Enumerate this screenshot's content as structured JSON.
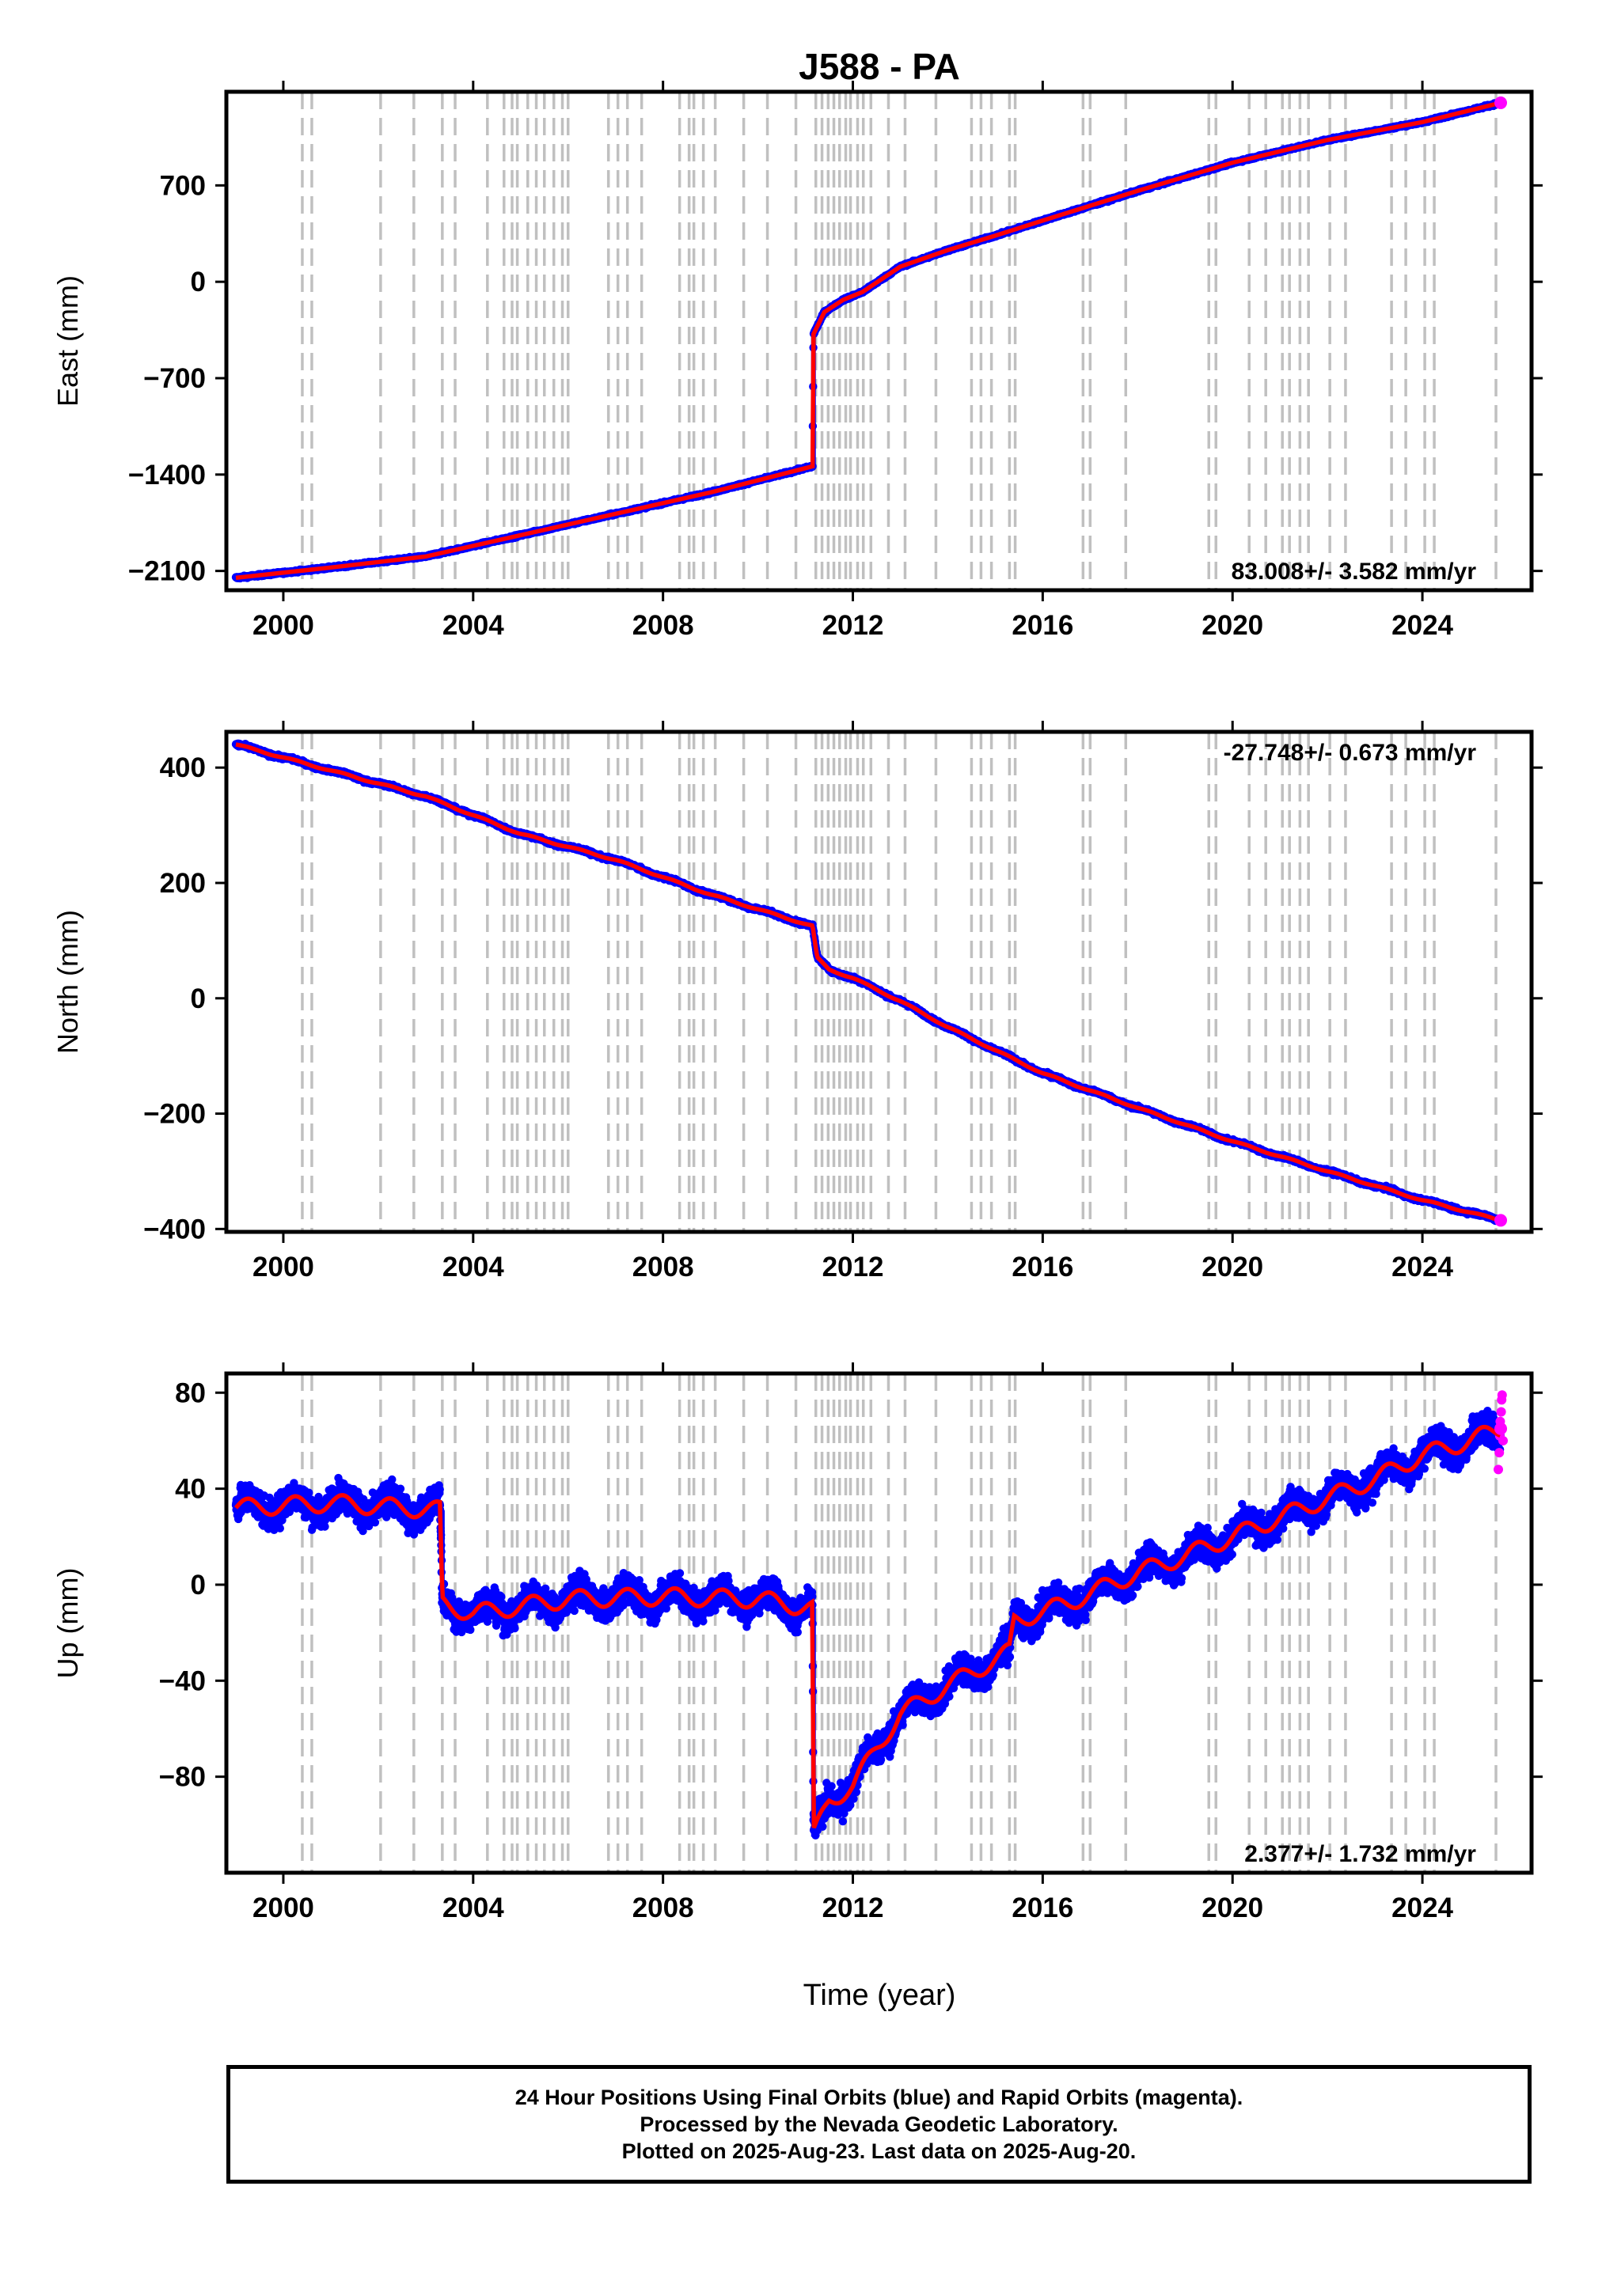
{
  "title": "J588 - PA",
  "x_axis": {
    "label": "Time (year)",
    "range": [
      1998.8,
      2026.3
    ],
    "ticks": [
      2000,
      2004,
      2008,
      2012,
      2016,
      2020,
      2024
    ],
    "tick_labels": [
      "2000",
      "2004",
      "2008",
      "2012",
      "2016",
      "2020",
      "2024"
    ]
  },
  "event_lines": [
    2000.4,
    2000.6,
    2002.05,
    2002.75,
    2003.35,
    2003.62,
    2004.3,
    2004.65,
    2004.82,
    2004.93,
    2005.15,
    2005.33,
    2005.5,
    2005.7,
    2005.88,
    2006.0,
    2006.85,
    2007.05,
    2007.25,
    2007.55,
    2008.35,
    2008.55,
    2008.65,
    2008.85,
    2009.1,
    2009.7,
    2010.2,
    2010.8,
    2011.22,
    2011.35,
    2011.48,
    2011.6,
    2011.72,
    2011.85,
    2011.95,
    2012.1,
    2012.22,
    2012.38,
    2012.75,
    2013.1,
    2013.75,
    2014.5,
    2014.7,
    2014.92,
    2015.3,
    2015.42,
    2016.85,
    2017.0,
    2017.75,
    2019.5,
    2019.65,
    2020.35,
    2020.7,
    2021.05,
    2021.2,
    2021.42,
    2021.6,
    2022.05,
    2022.38,
    2023.35,
    2023.65,
    2024.05,
    2024.25,
    2025.55
  ],
  "footer": {
    "line1": "24 Hour Positions Using Final Orbits (blue) and Rapid Orbits (magenta).",
    "line2": "Processed by the Nevada Geodetic Laboratory.",
    "line3": "Plotted on 2025-Aug-23. Last data on 2025-Aug-20."
  },
  "colors": {
    "final_orbits": "#0000ff",
    "rapid_orbits": "#ff00ff",
    "model": "#ff0000",
    "event_lines": "#c0c0c0"
  },
  "chart_data": [
    {
      "type": "scatter",
      "ylabel": "East (mm)",
      "ylim": [
        -2240,
        1380
      ],
      "yticks": [
        -2100,
        -1400,
        -700,
        0,
        700
      ],
      "ytick_labels": [
        "−2100",
        "−1400",
        "−700",
        "0",
        "700"
      ],
      "rate_label": "83.008+/- 3.582 mm/yr",
      "rate_position": "bottom-right",
      "noise_mm": 8,
      "seasonal_mm": 0,
      "model_series": [
        [
          1999.0,
          -2150
        ],
        [
          2001.0,
          -2075
        ],
        [
          2003.0,
          -1995
        ],
        [
          2005.0,
          -1840
        ],
        [
          2007.0,
          -1685
        ],
        [
          2009.0,
          -1530
        ],
        [
          2011.15,
          -1340
        ],
        [
          2011.17,
          -380
        ],
        [
          2011.4,
          -220
        ],
        [
          2011.8,
          -130
        ],
        [
          2012.2,
          -75
        ],
        [
          2013.0,
          110
        ],
        [
          2014.0,
          230
        ],
        [
          2015.0,
          335
        ],
        [
          2016.0,
          445
        ],
        [
          2018.0,
          660
        ],
        [
          2020.0,
          865
        ],
        [
          2022.0,
          1030
        ],
        [
          2024.0,
          1160
        ],
        [
          2025.65,
          1300
        ]
      ]
    },
    {
      "type": "scatter",
      "ylabel": "North (mm)",
      "ylim": [
        -405,
        462
      ],
      "yticks": [
        -400,
        -200,
        0,
        200,
        400
      ],
      "ytick_labels": [
        "−400",
        "−200",
        "0",
        "200",
        "400"
      ],
      "rate_label": "-27.748+/- 0.673 mm/yr",
      "rate_position": "top-right",
      "noise_mm": 3,
      "seasonal_mm": 1.5,
      "model_series": [
        [
          1999.0,
          440
        ],
        [
          2001.0,
          395
        ],
        [
          2003.0,
          350
        ],
        [
          2005.0,
          285
        ],
        [
          2007.0,
          240
        ],
        [
          2009.0,
          180
        ],
        [
          2011.15,
          125
        ],
        [
          2011.25,
          70
        ],
        [
          2011.5,
          50
        ],
        [
          2012.0,
          35
        ],
        [
          2013.0,
          -5
        ],
        [
          2014.0,
          -50
        ],
        [
          2015.0,
          -90
        ],
        [
          2016.0,
          -130
        ],
        [
          2018.0,
          -190
        ],
        [
          2020.0,
          -248
        ],
        [
          2022.0,
          -300
        ],
        [
          2024.0,
          -350
        ],
        [
          2025.65,
          -385
        ]
      ]
    },
    {
      "type": "scatter",
      "ylabel": "Up (mm)",
      "ylim": [
        -120,
        88
      ],
      "yticks": [
        -80,
        -40,
        0,
        40,
        80
      ],
      "ytick_labels": [
        "−80",
        "−40",
        "0",
        "40",
        "80"
      ],
      "rate_label": "2.377+/- 1.732 mm/yr",
      "rate_position": "bottom-right",
      "noise_mm": 6,
      "seasonal_mm": 4,
      "model_series": [
        [
          1999.0,
          32
        ],
        [
          2001.0,
          34
        ],
        [
          2003.3,
          31
        ],
        [
          2003.35,
          -8
        ],
        [
          2004.0,
          -12
        ],
        [
          2006.0,
          -6
        ],
        [
          2008.0,
          -5
        ],
        [
          2010.0,
          -6
        ],
        [
          2011.15,
          -10
        ],
        [
          2011.17,
          -105
        ],
        [
          2011.5,
          -90
        ],
        [
          2012.0,
          -84
        ],
        [
          2012.5,
          -68
        ],
        [
          2013.0,
          -54
        ],
        [
          2014.0,
          -42
        ],
        [
          2015.3,
          -28
        ],
        [
          2015.4,
          -15
        ],
        [
          2016.5,
          -8
        ],
        [
          2018.0,
          5
        ],
        [
          2019.0,
          12
        ],
        [
          2020.0,
          20
        ],
        [
          2021.0,
          28
        ],
        [
          2022.0,
          36
        ],
        [
          2023.0,
          44
        ],
        [
          2024.0,
          54
        ],
        [
          2025.0,
          60
        ],
        [
          2025.65,
          65
        ]
      ],
      "rapid_points": [
        [
          2025.6,
          48
        ],
        [
          2025.62,
          55
        ],
        [
          2025.63,
          62
        ],
        [
          2025.64,
          68
        ],
        [
          2025.66,
          72
        ],
        [
          2025.67,
          77
        ],
        [
          2025.68,
          79
        ],
        [
          2025.7,
          60
        ]
      ]
    }
  ]
}
